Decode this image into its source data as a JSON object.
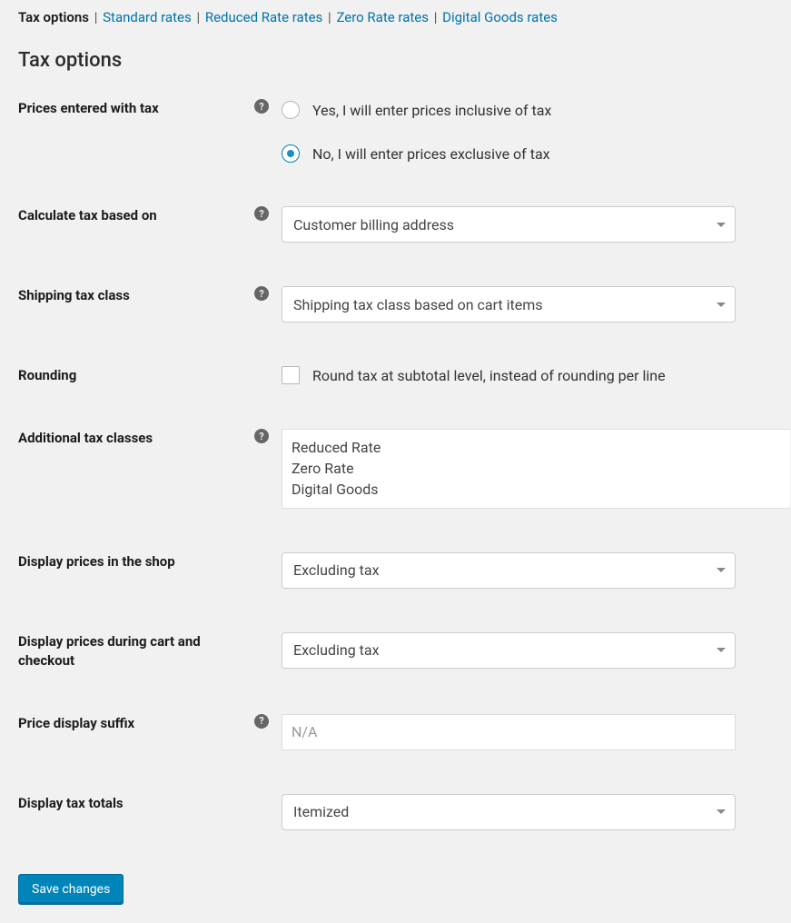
{
  "subnav": {
    "current": "Tax options",
    "links": [
      "Standard rates",
      "Reduced Rate rates",
      "Zero Rate rates",
      "Digital Goods rates"
    ]
  },
  "sectionTitle": "Tax options",
  "fields": {
    "pricesEnteredWithTax": {
      "label": "Prices entered with tax",
      "option_yes": "Yes, I will enter prices inclusive of tax",
      "option_no": "No, I will enter prices exclusive of tax",
      "selected": "no"
    },
    "calculateTaxBasedOn": {
      "label": "Calculate tax based on",
      "selected": "Customer billing address"
    },
    "shippingTaxClass": {
      "label": "Shipping tax class",
      "selected": "Shipping tax class based on cart items"
    },
    "rounding": {
      "label": "Rounding",
      "option": "Round tax at subtotal level, instead of rounding per line",
      "checked": false
    },
    "additionalTaxClasses": {
      "label": "Additional tax classes",
      "value": "Reduced Rate\nZero Rate\nDigital Goods"
    },
    "displayPricesShop": {
      "label": "Display prices in the shop",
      "selected": "Excluding tax"
    },
    "displayPricesCart": {
      "label": "Display prices during cart and checkout",
      "selected": "Excluding tax"
    },
    "priceDisplaySuffix": {
      "label": "Price display suffix",
      "placeholder": "N/A",
      "value": ""
    },
    "displayTaxTotals": {
      "label": "Display tax totals",
      "selected": "Itemized"
    }
  },
  "saveButton": "Save changes",
  "helpGlyph": "?",
  "colors": {
    "link": "#0073aa",
    "accent": "#0085ba",
    "bg": "#f1f1f1"
  }
}
